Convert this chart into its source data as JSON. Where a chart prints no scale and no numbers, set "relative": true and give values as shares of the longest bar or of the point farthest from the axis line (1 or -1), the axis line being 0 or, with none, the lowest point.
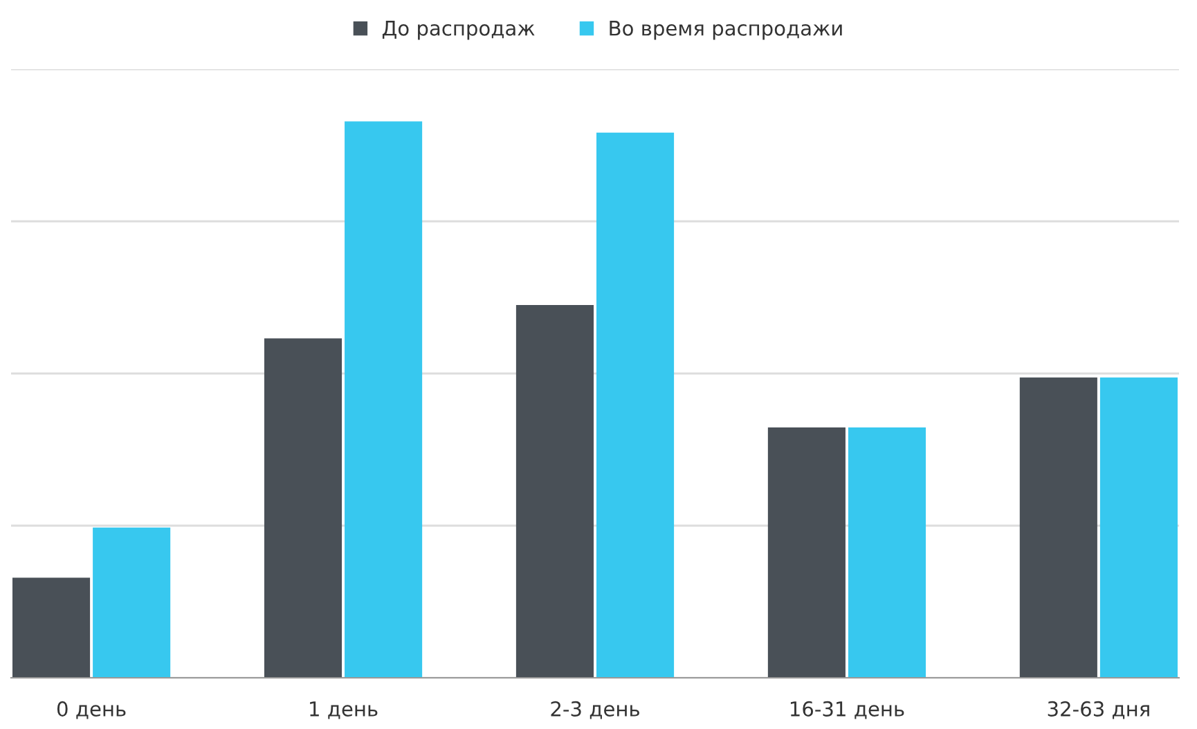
{
  "chart_data": {
    "type": "bar",
    "relative": true,
    "categories": [
      "0 день",
      "1 день",
      "2-3 день",
      "16-31 день",
      "32-63 дня"
    ],
    "series": [
      {
        "name": "До распродаж",
        "color": "#495057",
        "values": [
          0.18,
          0.61,
          0.67,
          0.45,
          0.54
        ]
      },
      {
        "name": "Во время распродажи",
        "color": "#37c8ef",
        "values": [
          0.27,
          1,
          0.98,
          0.45,
          0.54
        ]
      }
    ],
    "grid": "y",
    "legend": "top"
  }
}
